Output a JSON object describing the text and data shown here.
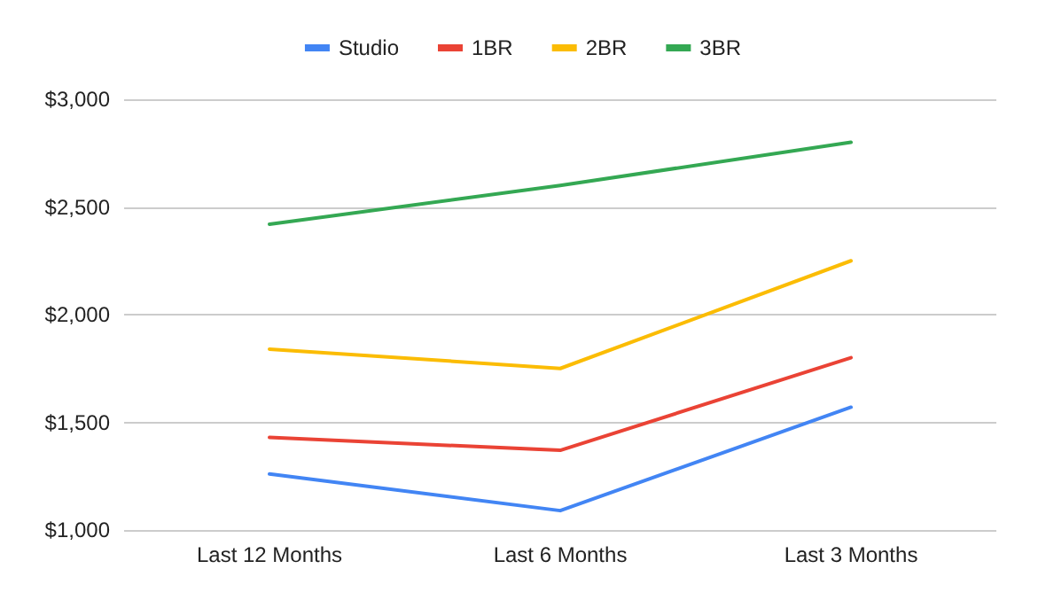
{
  "chart_data": {
    "type": "line",
    "categories": [
      "Last 12 Months",
      "Last 6 Months",
      "Last 3 Months"
    ],
    "series": [
      {
        "name": "Studio",
        "color": "#4285f4",
        "values": [
          1260,
          1090,
          1570
        ]
      },
      {
        "name": "1BR",
        "color": "#ea4335",
        "values": [
          1430,
          1370,
          1800
        ]
      },
      {
        "name": "2BR",
        "color": "#fbbc04",
        "values": [
          1840,
          1750,
          2250
        ]
      },
      {
        "name": "3BR",
        "color": "#34a853",
        "values": [
          2420,
          2600,
          2800
        ]
      }
    ],
    "ylim": [
      1000,
      3000
    ],
    "yticks": [
      {
        "value": 1000,
        "label": "$1,000"
      },
      {
        "value": 1500,
        "label": "$1,500"
      },
      {
        "value": 2000,
        "label": "$2,000"
      },
      {
        "value": 2500,
        "label": "$2,500"
      },
      {
        "value": 3000,
        "label": "$3,000"
      }
    ],
    "grid": "y",
    "legend": "top",
    "marker": "none",
    "line_style": "solid"
  }
}
